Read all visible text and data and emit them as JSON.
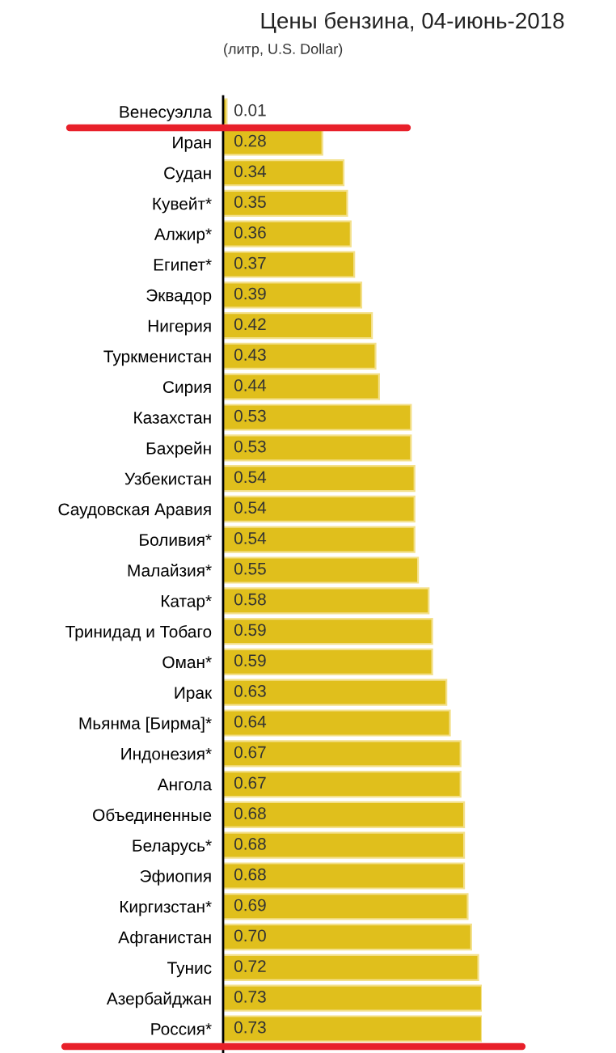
{
  "chart_data": {
    "type": "bar",
    "orientation": "horizontal",
    "title": "Цены бензина, 04-июнь-2018",
    "subtitle": "(литр, U.S. Dollar)",
    "categories": [
      "Венесуэлла",
      "Иран",
      "Судан",
      "Кувейт*",
      "Алжир*",
      "Египет*",
      "Эквадор",
      "Нигерия",
      "Туркменистан",
      "Сирия",
      "Казахстан",
      "Бахрейн",
      "Узбекистан",
      "Саудовская Аравия",
      "Боливия*",
      "Малайзия*",
      "Катар*",
      "Тринидад и Тобаго",
      "Оман*",
      "Ирак",
      "Мьянма [Бирма]*",
      "Индонезия*",
      "Ангола",
      "Объединенные",
      "Беларусь*",
      "Эфиопия",
      "Киргизстан*",
      "Афганистан",
      "Тунис",
      "Азербайджан",
      "Россия*"
    ],
    "values": [
      0.01,
      0.28,
      0.34,
      0.35,
      0.36,
      0.37,
      0.39,
      0.42,
      0.43,
      0.44,
      0.53,
      0.53,
      0.54,
      0.54,
      0.54,
      0.55,
      0.58,
      0.59,
      0.59,
      0.63,
      0.64,
      0.67,
      0.67,
      0.68,
      0.68,
      0.68,
      0.69,
      0.7,
      0.72,
      0.73,
      0.73
    ],
    "value_labels": [
      "0.01",
      "0.28",
      "0.34",
      "0.35",
      "0.36",
      "0.37",
      "0.39",
      "0.42",
      "0.43",
      "0.44",
      "0.53",
      "0.53",
      "0.54",
      "0.54",
      "0.54",
      "0.55",
      "0.58",
      "0.59",
      "0.59",
      "0.63",
      "0.64",
      "0.67",
      "0.67",
      "0.68",
      "0.68",
      "0.68",
      "0.69",
      "0.70",
      "0.72",
      "0.73",
      "0.73"
    ],
    "color": "#e0bf1c",
    "tick_labels": "y",
    "grid": false
  }
}
